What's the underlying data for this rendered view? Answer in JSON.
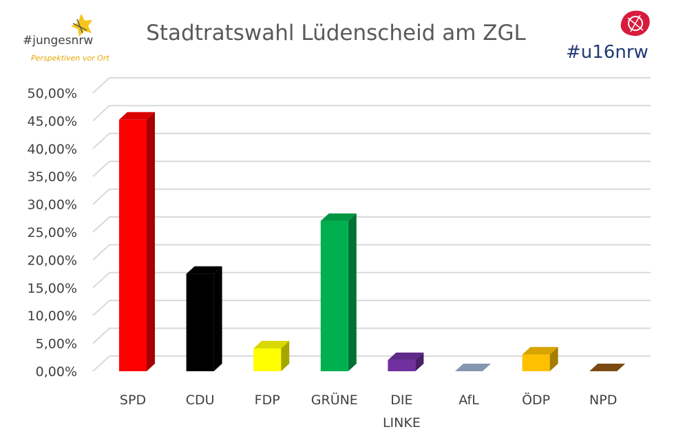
{
  "chart_data": {
    "type": "bar",
    "title": "Stadtratswahl Lüdenscheid am ZGL",
    "xlabel": "",
    "ylabel": "",
    "ylim": [
      0,
      50
    ],
    "yticks": [
      "0,00%",
      "5,00%",
      "10,00%",
      "15,00%",
      "20,00%",
      "25,00%",
      "30,00%",
      "35,00%",
      "40,00%",
      "45,00%",
      "50,00%"
    ],
    "categories": [
      "SPD",
      "CDU",
      "FDP",
      "GRÜNE",
      "DIE LINKE",
      "AfL",
      "ÖDP",
      "NPD"
    ],
    "values": [
      45.2,
      17.5,
      4.1,
      27.0,
      2.0,
      0.1,
      3.0,
      0.1
    ],
    "colors": [
      "#ff0000",
      "#000000",
      "#ffff00",
      "#00b050",
      "#7030a0",
      "#8497b0",
      "#ffc000",
      "#7b4a12"
    ],
    "grid": true,
    "legend": "none"
  },
  "logos": {
    "left": {
      "text": "#jungesnrw",
      "subtext": "Perspektiven vor Ort"
    },
    "right": {
      "text": "#u16nrw"
    }
  }
}
